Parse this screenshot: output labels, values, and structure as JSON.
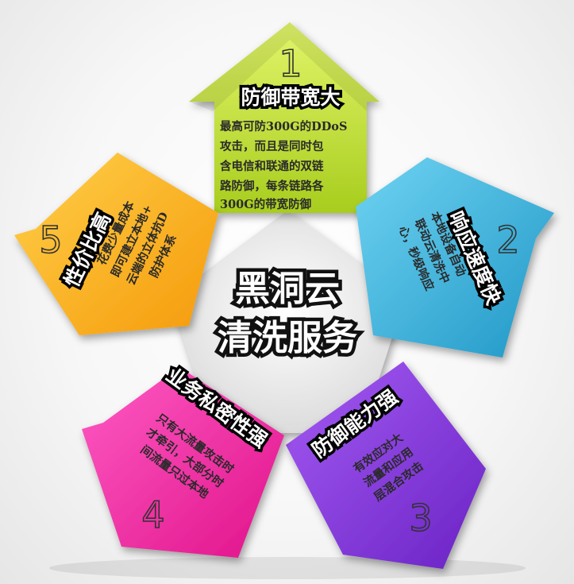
{
  "center": {
    "line1": "黑洞云",
    "line2": "清洗服务"
  },
  "cards": [
    {
      "number": "1",
      "title": "防御带宽大",
      "lines": [
        "最高可防300G的DDoS",
        "攻击，而且是同时包",
        "含电信和联通的双链",
        "路防御，每条链路各",
        "300G的带宽防御"
      ],
      "color": "#c6e53a"
    },
    {
      "number": "2",
      "title": "响应速度快",
      "lines": [
        "本地设备自动",
        "联动云清洗中",
        "心，秒级响应"
      ],
      "color": "#38b6df"
    },
    {
      "number": "3",
      "title": "防御能力强",
      "lines": [
        "有效应对大",
        "流量和应用",
        "层混合攻击"
      ],
      "color": "#8a3fe0"
    },
    {
      "number": "4",
      "title": "业务私密性强",
      "lines": [
        "只有大流量攻击时",
        "才牵引，大部分时",
        "间流量只过本地"
      ],
      "color": "#ff2aa9"
    },
    {
      "number": "5",
      "title": "性价比高",
      "lines": [
        "花费少量成本",
        "即可建立本地+",
        "云端的立体抗D",
        "防护体系"
      ],
      "color": "#ffb21a"
    }
  ]
}
